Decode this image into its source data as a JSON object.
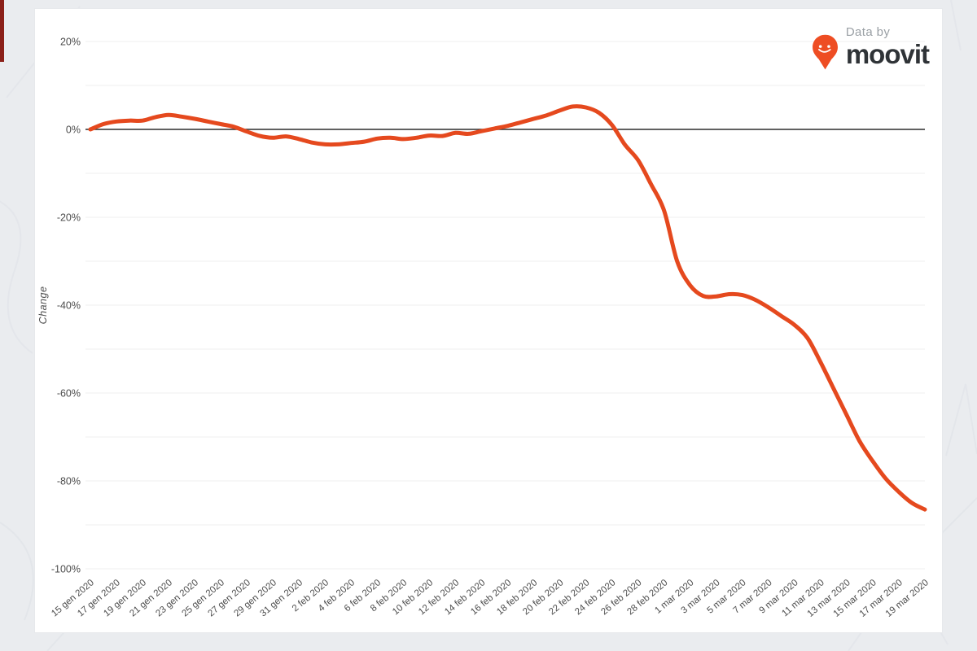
{
  "page": {
    "background_color": "#eaecef",
    "card_color": "#ffffff",
    "edge_accent_color": "#8b2019"
  },
  "branding": {
    "data_by": "Data by",
    "brand_name": "moovit",
    "pin_color": "#ee4d23"
  },
  "chart_data": {
    "type": "line",
    "title": "",
    "xlabel": "",
    "ylabel": "Change",
    "series_color": "#e5491e",
    "zero_line_color": "#2d2d2d",
    "grid_color": "#efefef",
    "tick_text_color": "#4c4c4c",
    "ylim": [
      -100,
      20
    ],
    "y_grid_step": 10,
    "y_tick_labels": [
      "20%",
      "0%",
      "-20%",
      "-40%",
      "-60%",
      "-80%",
      "-100%"
    ],
    "y_ticks_major": [
      20,
      0,
      -20,
      -40,
      -60,
      -80,
      -100
    ],
    "legend": "none",
    "x_tick_labels": [
      "15 gen 2020",
      "17 gen 2020",
      "19 gen 2020",
      "21 gen 2020",
      "23 gen 2020",
      "25 gen 2020",
      "27 gen 2020",
      "29 gen 2020",
      "31 gen 2020",
      "2 feb 2020",
      "4 feb 2020",
      "6 feb 2020",
      "8 feb 2020",
      "10 feb 2020",
      "12 feb 2020",
      "14 feb 2020",
      "16 feb 2020",
      "18 feb 2020",
      "20 feb 2020",
      "22 feb 2020",
      "24 feb 2020",
      "26 feb 2020",
      "28 feb 2020",
      "1 mar 2020",
      "3 mar 2020",
      "5 mar 2020",
      "7 mar 2020",
      "9 mar 2020",
      "11 mar 2020",
      "13 mar 2020",
      "15 mar 2020",
      "17 mar 2020",
      "19 mar 2020"
    ],
    "x": [
      "15 gen 2020",
      "16 gen 2020",
      "17 gen 2020",
      "18 gen 2020",
      "19 gen 2020",
      "20 gen 2020",
      "21 gen 2020",
      "22 gen 2020",
      "23 gen 2020",
      "24 gen 2020",
      "25 gen 2020",
      "26 gen 2020",
      "27 gen 2020",
      "28 gen 2020",
      "29 gen 2020",
      "30 gen 2020",
      "31 gen 2020",
      "1 feb 2020",
      "2 feb 2020",
      "3 feb 2020",
      "4 feb 2020",
      "5 feb 2020",
      "6 feb 2020",
      "7 feb 2020",
      "8 feb 2020",
      "9 feb 2020",
      "10 feb 2020",
      "11 feb 2020",
      "12 feb 2020",
      "13 feb 2020",
      "14 feb 2020",
      "15 feb 2020",
      "16 feb 2020",
      "17 feb 2020",
      "18 feb 2020",
      "19 feb 2020",
      "20 feb 2020",
      "21 feb 2020",
      "22 feb 2020",
      "23 feb 2020",
      "24 feb 2020",
      "25 feb 2020",
      "26 feb 2020",
      "27 feb 2020",
      "28 feb 2020",
      "29 feb 2020",
      "1 mar 2020",
      "2 mar 2020",
      "3 mar 2020",
      "4 mar 2020",
      "5 mar 2020",
      "6 mar 2020",
      "7 mar 2020",
      "8 mar 2020",
      "9 mar 2020",
      "10 mar 2020",
      "11 mar 2020",
      "12 mar 2020",
      "13 mar 2020",
      "14 mar 2020",
      "15 mar 2020",
      "16 mar 2020",
      "17 mar 2020",
      "18 mar 2020",
      "19 mar 2020"
    ],
    "values": [
      0,
      1.2,
      1.8,
      2.0,
      2.0,
      2.8,
      3.3,
      2.9,
      2.4,
      1.8,
      1.2,
      0.6,
      -0.5,
      -1.5,
      -1.9,
      -1.6,
      -2.2,
      -3.0,
      -3.4,
      -3.4,
      -3.1,
      -2.8,
      -2.1,
      -1.9,
      -2.2,
      -1.9,
      -1.4,
      -1.5,
      -0.8,
      -1.0,
      -0.4,
      0.2,
      0.8,
      1.6,
      2.4,
      3.2,
      4.3,
      5.2,
      5.0,
      3.8,
      1.0,
      -3.5,
      -7.0,
      -12.5,
      -18.5,
      -30.0,
      -35.5,
      -37.9,
      -38.0,
      -37.5,
      -37.7,
      -38.8,
      -40.5,
      -42.5,
      -44.5,
      -47.5,
      -53.0,
      -59.0,
      -65.0,
      -71.0,
      -75.5,
      -79.5,
      -82.5,
      -85.0,
      -86.5
    ]
  }
}
